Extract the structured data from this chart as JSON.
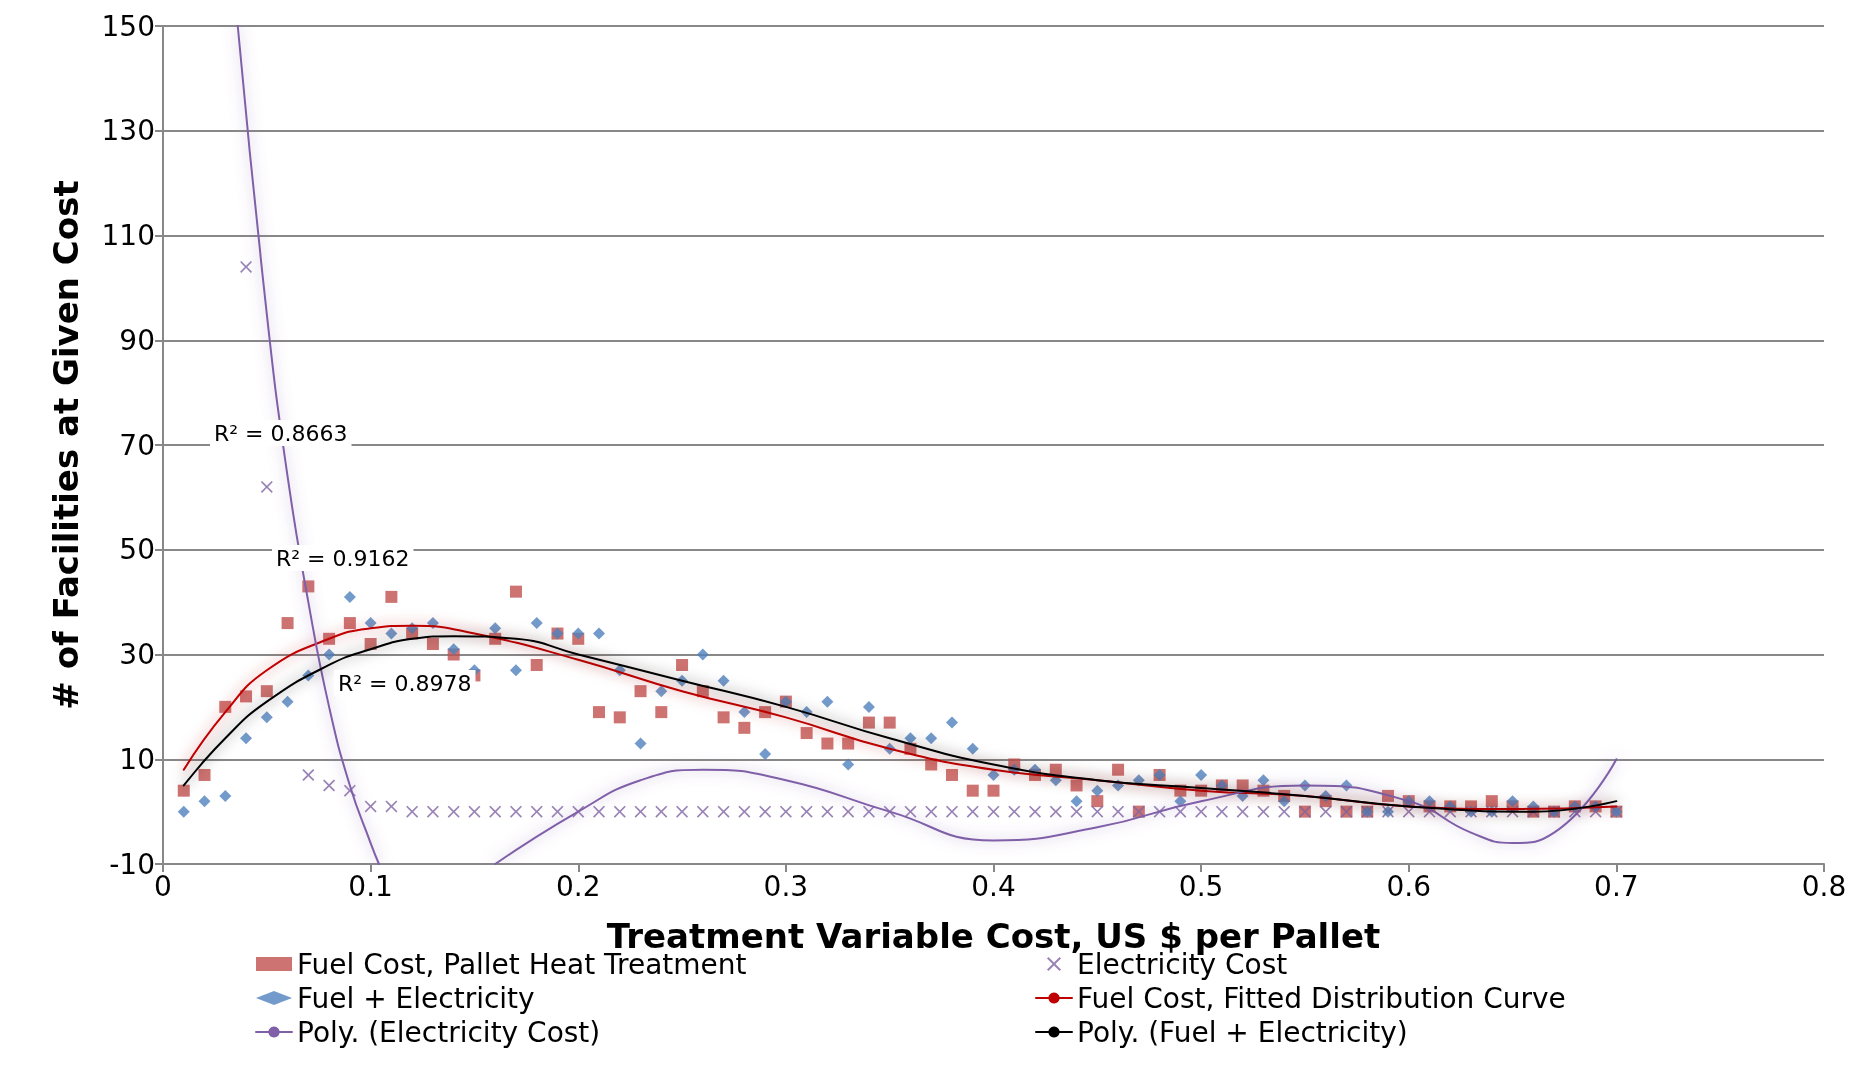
{
  "chart_data": {
    "type": "scatter",
    "xlabel": "Treatment Variable Cost, US $ per Pallet",
    "ylabel": "# of Facilities at Given Cost",
    "xlim": [
      0,
      0.8
    ],
    "xticks": [
      0,
      0.1,
      0.2,
      0.3,
      0.4,
      0.5,
      0.6,
      0.7,
      0.8
    ],
    "ylim": [
      -10,
      150
    ],
    "yticks": [
      -10,
      10,
      30,
      50,
      70,
      90,
      110,
      130,
      150
    ],
    "grid": "y",
    "legend": "bottom",
    "x": [
      0.01,
      0.02,
      0.03,
      0.04,
      0.05,
      0.06,
      0.07,
      0.08,
      0.09,
      0.1,
      0.11,
      0.12,
      0.13,
      0.14,
      0.15,
      0.16,
      0.17,
      0.18,
      0.19,
      0.2,
      0.21,
      0.22,
      0.23,
      0.24,
      0.25,
      0.26,
      0.27,
      0.28,
      0.29,
      0.3,
      0.31,
      0.32,
      0.33,
      0.34,
      0.35,
      0.36,
      0.37,
      0.38,
      0.39,
      0.4,
      0.41,
      0.42,
      0.43,
      0.44,
      0.45,
      0.46,
      0.47,
      0.48,
      0.49,
      0.5,
      0.51,
      0.52,
      0.53,
      0.54,
      0.55,
      0.56,
      0.57,
      0.58,
      0.59,
      0.6,
      0.61,
      0.62,
      0.63,
      0.64,
      0.65,
      0.66,
      0.67,
      0.68,
      0.69,
      0.7
    ],
    "series": [
      {
        "name": "Fuel Cost, Pallet Heat Treatment",
        "marker": "square",
        "color": "#c0504d",
        "values": [
          4,
          7,
          20,
          22,
          23,
          36,
          43,
          33,
          36,
          32,
          41,
          34,
          32,
          30,
          26,
          33,
          42,
          28,
          34,
          33,
          19,
          18,
          23,
          19,
          28,
          23,
          18,
          16,
          19,
          21,
          15,
          13,
          13,
          17,
          17,
          12,
          9,
          7,
          4,
          4,
          9,
          7,
          8,
          5,
          2,
          8,
          0,
          7,
          4,
          4,
          5,
          5,
          4,
          3,
          0,
          2,
          0,
          0,
          3,
          2,
          1,
          1,
          1,
          2,
          1,
          0,
          0,
          1,
          1,
          0
        ]
      },
      {
        "name": "Electricity Cost",
        "marker": "cross",
        "color": "#8064a2",
        "values": [
          null,
          null,
          null,
          104,
          62,
          null,
          7,
          5,
          4,
          1,
          1,
          0,
          0,
          0,
          0,
          0,
          0,
          0,
          0,
          0,
          0,
          0,
          0,
          0,
          0,
          0,
          0,
          0,
          0,
          0,
          0,
          0,
          0,
          0,
          0,
          0,
          0,
          0,
          0,
          0,
          0,
          0,
          0,
          0,
          0,
          0,
          0,
          0,
          0,
          0,
          0,
          0,
          0,
          0,
          0,
          0,
          0,
          0,
          0,
          0,
          0,
          0,
          0,
          0,
          0,
          0,
          0,
          0,
          0,
          0
        ]
      },
      {
        "name": "Fuel + Electricity",
        "marker": "diamond",
        "color": "#4f81bd",
        "values": [
          0,
          2,
          3,
          14,
          18,
          21,
          26,
          30,
          41,
          36,
          34,
          35,
          36,
          31,
          27,
          35,
          27,
          36,
          34,
          34,
          34,
          27,
          13,
          23,
          25,
          30,
          25,
          19,
          11,
          21,
          19,
          21,
          9,
          20,
          12,
          14,
          14,
          17,
          12,
          7,
          8,
          8,
          6,
          2,
          4,
          5,
          6,
          7,
          2,
          7,
          5,
          3,
          6,
          2,
          5,
          3,
          5,
          0,
          0,
          2,
          2,
          1,
          0,
          0,
          2,
          1,
          0,
          1,
          1,
          0
        ]
      },
      {
        "name": "Fuel Cost, Fitted Distribution Curve",
        "type": "line",
        "marker": "none",
        "line_style": "solid",
        "color": "#c00000",
        "x": [
          0.01,
          0.03,
          0.05,
          0.08,
          0.1,
          0.12,
          0.15,
          0.2,
          0.25,
          0.3,
          0.35,
          0.4,
          0.45,
          0.5,
          0.55,
          0.6,
          0.65,
          0.7
        ],
        "values": [
          8,
          19,
          27,
          33,
          35,
          35.5,
          34,
          29,
          23,
          18,
          12,
          8,
          6,
          4,
          3,
          1,
          0.5,
          1
        ]
      },
      {
        "name": "Poly. (Electricity Cost)",
        "type": "line",
        "marker": "none",
        "line_style": "solid",
        "color": "#7f5fa8",
        "x": [
          0.036,
          0.05,
          0.06,
          0.07,
          0.08,
          0.09,
          0.1,
          0.104,
          0.155,
          0.16,
          0.2,
          0.23,
          0.26,
          0.3,
          0.35,
          0.4,
          0.45,
          0.5,
          0.55,
          0.6,
          0.63,
          0.65,
          0.67,
          0.7
        ],
        "values": [
          150,
          95,
          64,
          40,
          20,
          5,
          -6,
          -10,
          null,
          -10,
          0,
          6,
          8,
          6,
          0,
          -5.5,
          -3,
          2,
          5,
          2,
          -4,
          -6,
          -4,
          10
        ]
      },
      {
        "name": "Poly. (Fuel + Electricity)",
        "type": "line",
        "marker": "none",
        "line_style": "solid",
        "color": "#000000",
        "x": [
          0.01,
          0.03,
          0.05,
          0.08,
          0.1,
          0.12,
          0.14,
          0.17,
          0.2,
          0.25,
          0.3,
          0.35,
          0.4,
          0.45,
          0.5,
          0.55,
          0.6,
          0.66,
          0.7
        ],
        "values": [
          5,
          14,
          21,
          28,
          31,
          33,
          33.5,
          33,
          30,
          25,
          20,
          14,
          9,
          6,
          4.5,
          3,
          1,
          0,
          2
        ]
      }
    ],
    "annotations": [
      "R² = 0.8663",
      "R² = 0.9162",
      "R² = 0.8978"
    ]
  }
}
